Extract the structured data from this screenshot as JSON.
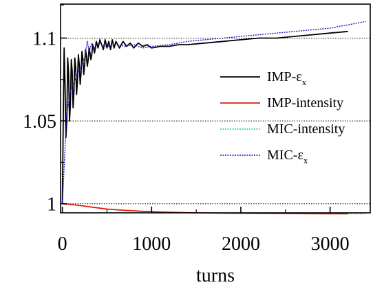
{
  "chart_data": {
    "type": "line",
    "title": "",
    "xlabel": "turns",
    "ylabel": "",
    "xlim": [
      -20,
      3450
    ],
    "ylim": [
      0.9945,
      1.1205
    ],
    "xticks": [
      0,
      1000,
      2000,
      3000
    ],
    "xtick_labels": [
      "0",
      "1000",
      "2000",
      "3000"
    ],
    "yticks": [
      1,
      1.05,
      1.1
    ],
    "ytick_labels": [
      "1",
      "1.05",
      "1.1"
    ],
    "reference_lines": [
      1,
      1.05,
      1.1
    ],
    "grid": false,
    "legend_position": "right",
    "colors": {
      "imp_emittance": "#000000",
      "imp_intensity": "#dd1a10",
      "mic_intensity": "#20d088",
      "mic_emittance": "#1818c8",
      "reference_line": "#000000"
    },
    "series": [
      {
        "key": "imp_emittance",
        "name": "IMP-ε",
        "name_sub": "x",
        "style": "solid",
        "x": [
          0,
          10,
          20,
          30,
          40,
          50,
          60,
          70,
          80,
          90,
          100,
          110,
          120,
          130,
          140,
          150,
          160,
          170,
          180,
          190,
          200,
          210,
          220,
          230,
          240,
          250,
          260,
          270,
          280,
          290,
          300,
          310,
          320,
          330,
          340,
          350,
          360,
          370,
          380,
          390,
          400,
          420,
          440,
          460,
          480,
          500,
          520,
          540,
          560,
          580,
          600,
          640,
          680,
          720,
          760,
          800,
          850,
          900,
          950,
          1000,
          1100,
          1200,
          1300,
          1400,
          1600,
          1800,
          2000,
          2200,
          2400,
          2600,
          2800,
          3000,
          3200
        ],
        "y": [
          1.0,
          1.05,
          1.094,
          1.072,
          1.04,
          1.05,
          1.088,
          1.078,
          1.05,
          1.06,
          1.087,
          1.08,
          1.058,
          1.068,
          1.088,
          1.082,
          1.066,
          1.075,
          1.09,
          1.084,
          1.072,
          1.079,
          1.092,
          1.087,
          1.078,
          1.084,
          1.093,
          1.089,
          1.083,
          1.087,
          1.094,
          1.091,
          1.087,
          1.09,
          1.096,
          1.094,
          1.091,
          1.094,
          1.098,
          1.096,
          1.094,
          1.099,
          1.096,
          1.093,
          1.099,
          1.094,
          1.098,
          1.093,
          1.099,
          1.094,
          1.098,
          1.094,
          1.098,
          1.095,
          1.097,
          1.094,
          1.097,
          1.095,
          1.096,
          1.094,
          1.095,
          1.095,
          1.096,
          1.096,
          1.097,
          1.098,
          1.099,
          1.1,
          1.1,
          1.101,
          1.102,
          1.103,
          1.104
        ]
      },
      {
        "key": "imp_intensity",
        "name": "IMP-intensity",
        "name_sub": "",
        "style": "solid",
        "x": [
          0,
          50,
          100,
          200,
          300,
          400,
          500,
          700,
          900,
          1100,
          1300,
          1500,
          1800,
          2100,
          2400,
          2700,
          3000,
          3200
        ],
        "y": [
          1.0,
          0.9998,
          0.9995,
          0.9989,
          0.9982,
          0.9975,
          0.9968,
          0.996,
          0.9954,
          0.995,
          0.9947,
          0.9945,
          0.9943,
          0.9942,
          0.9941,
          0.994,
          0.9939,
          0.9939
        ]
      },
      {
        "key": "mic_intensity",
        "name": "MIC-intensity",
        "name_sub": "",
        "style": "dotted",
        "x": [
          3200,
          3300,
          3400
        ],
        "y": [
          0.9939,
          0.9939,
          0.9939
        ]
      },
      {
        "key": "mic_emittance",
        "name": "MIC-ε",
        "name_sub": "x",
        "style": "dotted",
        "x": [
          0,
          50,
          100,
          150,
          200,
          250,
          280,
          300,
          330,
          360,
          400,
          500,
          600,
          700,
          800,
          900,
          1000,
          1200,
          1400,
          1600,
          1800,
          2000,
          2200,
          2400,
          2600,
          2800,
          3000,
          3200,
          3400
        ],
        "y": [
          1.0,
          1.055,
          1.07,
          1.076,
          1.082,
          1.088,
          1.098,
          1.092,
          1.097,
          1.094,
          1.097,
          1.095,
          1.096,
          1.095,
          1.096,
          1.094,
          1.095,
          1.096,
          1.098,
          1.099,
          1.1,
          1.101,
          1.102,
          1.103,
          1.104,
          1.105,
          1.106,
          1.108,
          1.11
        ]
      }
    ]
  }
}
